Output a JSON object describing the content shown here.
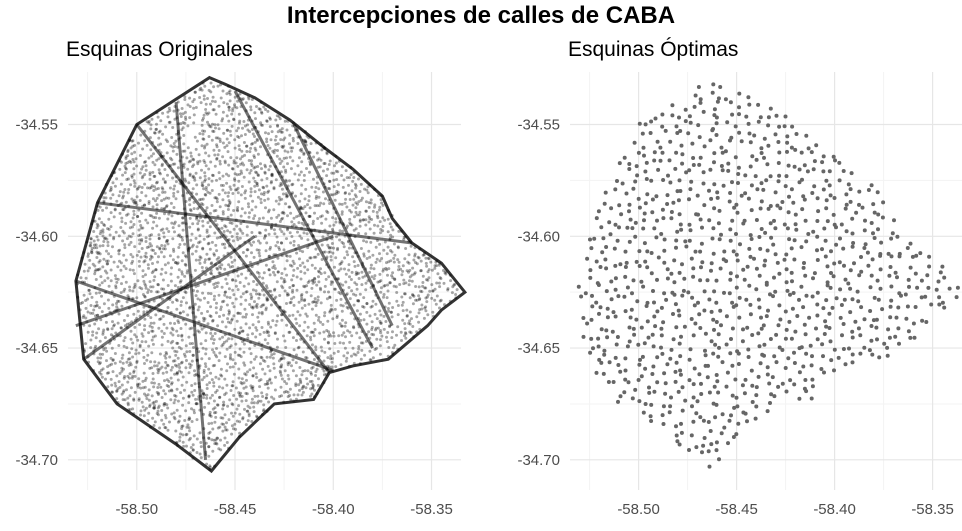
{
  "title": "Intercepciones de calles de CABA",
  "chart_data": [
    {
      "type": "scatter",
      "title": "Esquinas Originales",
      "xlabel": "",
      "ylabel": "",
      "xlim": [
        -58.535,
        -58.335
      ],
      "ylim": [
        -34.7135,
        -34.5265
      ],
      "x_ticks": [
        -58.5,
        -58.45,
        -58.4,
        -58.35
      ],
      "x_tick_labels": [
        "-58.50",
        "-58.45",
        "-58.40",
        "-58.35"
      ],
      "y_ticks": [
        -34.55,
        -34.6,
        -34.65,
        -34.7
      ],
      "y_tick_labels": [
        "-34.55",
        "-34.60",
        "-34.65",
        "-34.70"
      ],
      "grid": true,
      "point_color": "#000000",
      "point_opacity": 0.35,
      "point_style": "dense street intersections",
      "boundary": [
        [
          -58.463,
          -34.529
        ],
        [
          -58.455,
          -34.532
        ],
        [
          -58.44,
          -34.538
        ],
        [
          -58.422,
          -34.548
        ],
        [
          -58.405,
          -34.56
        ],
        [
          -58.39,
          -34.57
        ],
        [
          -58.375,
          -34.582
        ],
        [
          -58.37,
          -34.592
        ],
        [
          -58.36,
          -34.603
        ],
        [
          -58.345,
          -34.612
        ],
        [
          -58.333,
          -34.625
        ],
        [
          -58.345,
          -34.633
        ],
        [
          -58.352,
          -34.64
        ],
        [
          -58.372,
          -34.655
        ],
        [
          -58.39,
          -34.658
        ],
        [
          -58.402,
          -34.661
        ],
        [
          -58.41,
          -34.673
        ],
        [
          -58.43,
          -34.675
        ],
        [
          -58.448,
          -34.69
        ],
        [
          -58.462,
          -34.705
        ],
        [
          -58.48,
          -34.693
        ],
        [
          -58.51,
          -34.675
        ],
        [
          -58.527,
          -34.655
        ],
        [
          -58.531,
          -34.62
        ],
        [
          -58.52,
          -34.585
        ],
        [
          -58.5,
          -34.55
        ]
      ]
    },
    {
      "type": "scatter",
      "title": "Esquinas Óptimas",
      "xlabel": "",
      "ylabel": "",
      "xlim": [
        -58.535,
        -58.335
      ],
      "ylim": [
        -34.7135,
        -34.5265
      ],
      "x_ticks": [
        -58.5,
        -58.45,
        -58.4,
        -58.35
      ],
      "x_tick_labels": [
        "-58.50",
        "-58.45",
        "-58.40",
        "-58.35"
      ],
      "y_ticks": [
        -34.55,
        -34.6,
        -34.65,
        -34.7
      ],
      "y_tick_labels": [
        "-34.55",
        "-34.60",
        "-34.65",
        "-34.70"
      ],
      "grid": true,
      "point_color": "#666666",
      "point_opacity": 1,
      "point_style": "evenly spaced sample",
      "boundary": [
        [
          -58.463,
          -34.529
        ],
        [
          -58.455,
          -34.532
        ],
        [
          -58.44,
          -34.538
        ],
        [
          -58.422,
          -34.548
        ],
        [
          -58.405,
          -34.56
        ],
        [
          -58.39,
          -34.57
        ],
        [
          -58.375,
          -34.582
        ],
        [
          -58.37,
          -34.592
        ],
        [
          -58.36,
          -34.603
        ],
        [
          -58.345,
          -34.612
        ],
        [
          -58.333,
          -34.625
        ],
        [
          -58.345,
          -34.633
        ],
        [
          -58.352,
          -34.64
        ],
        [
          -58.372,
          -34.655
        ],
        [
          -58.39,
          -34.658
        ],
        [
          -58.402,
          -34.661
        ],
        [
          -58.41,
          -34.673
        ],
        [
          -58.43,
          -34.675
        ],
        [
          -58.448,
          -34.69
        ],
        [
          -58.462,
          -34.705
        ],
        [
          -58.48,
          -34.693
        ],
        [
          -58.51,
          -34.675
        ],
        [
          -58.527,
          -34.655
        ],
        [
          -58.531,
          -34.62
        ],
        [
          -58.52,
          -34.585
        ],
        [
          -58.5,
          -34.55
        ]
      ]
    }
  ]
}
